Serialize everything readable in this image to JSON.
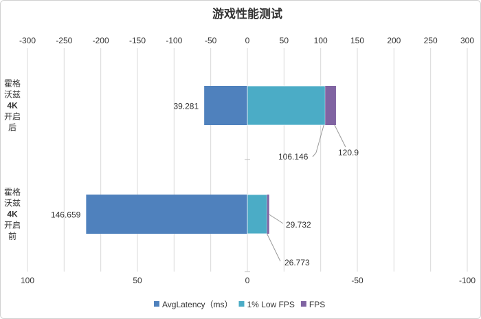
{
  "chart_data": {
    "type": "bar",
    "orientation": "horizontal",
    "title": "游戏性能测试",
    "categories": [
      {
        "lines": [
          "霍格",
          "沃兹",
          "4K",
          "开启",
          "后"
        ]
      },
      {
        "lines": [
          "霍格",
          "沃兹",
          "4K",
          "开启",
          "前"
        ]
      }
    ],
    "top_axis": {
      "min": -300,
      "max": 300,
      "step": 50,
      "ticks": [
        "-300",
        "-250",
        "-200",
        "-150",
        "-100",
        "-50",
        "0",
        "50",
        "100",
        "150",
        "200",
        "250",
        "300"
      ]
    },
    "bottom_axis": {
      "min": -100,
      "max": 100,
      "reversed": true,
      "ticks": [
        "100",
        "50",
        "0",
        "-50",
        "-100"
      ]
    },
    "grid": true,
    "legend_position": "bottom",
    "series": [
      {
        "name": "AvgLatency（ms）",
        "color": "#4f81bd",
        "values": [
          39.281,
          146.659
        ],
        "labels": [
          "39.281",
          "146.659"
        ]
      },
      {
        "name": "1% Low FPS",
        "color": "#4bacc6",
        "values": [
          106.146,
          26.773
        ],
        "labels": [
          "106.146",
          "26.773"
        ]
      },
      {
        "name": "FPS",
        "color": "#8064a2",
        "values": [
          120.9,
          29.732
        ],
        "labels": [
          "120.9",
          "29.732"
        ]
      }
    ]
  }
}
